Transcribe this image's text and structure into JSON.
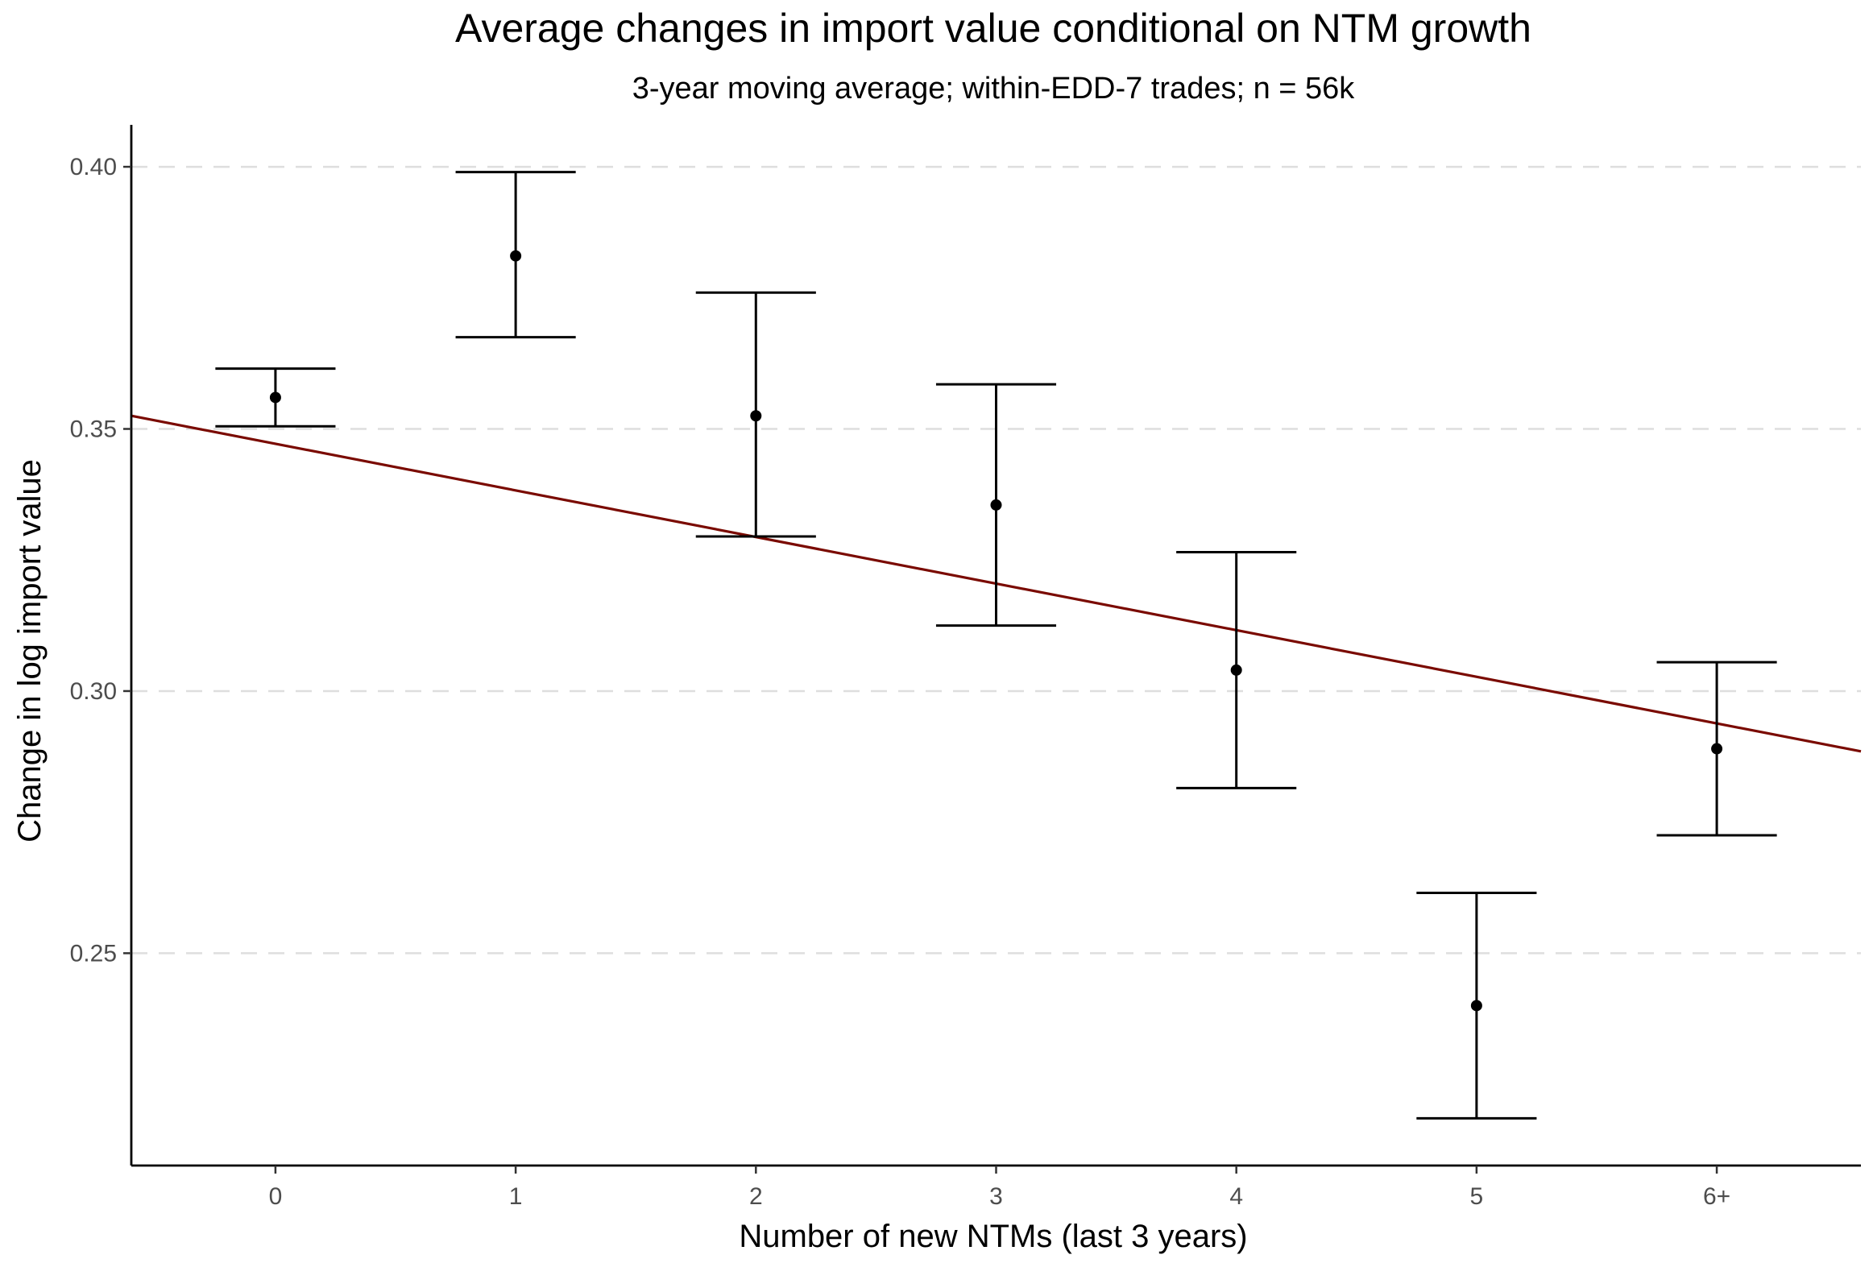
{
  "chart_data": {
    "type": "scatter",
    "title": "Average changes in import value conditional on NTM growth",
    "subtitle": "3-year moving average; within-EDD-7 trades; n = 56k",
    "xlabel": "Number of new NTMs (last 3 years)",
    "ylabel": "Change in log import value",
    "categories": [
      "0",
      "1",
      "2",
      "3",
      "4",
      "5",
      "6+"
    ],
    "x": [
      0,
      1,
      2,
      3,
      4,
      5,
      6
    ],
    "y": [
      0.356,
      0.383,
      0.3525,
      0.3355,
      0.304,
      0.24,
      0.289
    ],
    "error_low": [
      0.3505,
      0.3675,
      0.3295,
      0.3125,
      0.2815,
      0.2185,
      0.2725
    ],
    "error_high": [
      0.3615,
      0.399,
      0.376,
      0.3585,
      0.3265,
      0.2615,
      0.3055
    ],
    "trend_line": {
      "x": [
        -0.6,
        6.6
      ],
      "y": [
        0.3525,
        0.2885
      ],
      "color": "#7a0a00"
    },
    "xlim": [
      -0.6,
      6.6
    ],
    "ylim": [
      0.2095,
      0.408
    ],
    "y_ticks": [
      0.25,
      0.3,
      0.35,
      0.4
    ],
    "y_tick_labels": [
      "0.25",
      "0.30",
      "0.35",
      "0.40"
    ],
    "grid": "horizontal-dashed",
    "legend": "none"
  }
}
